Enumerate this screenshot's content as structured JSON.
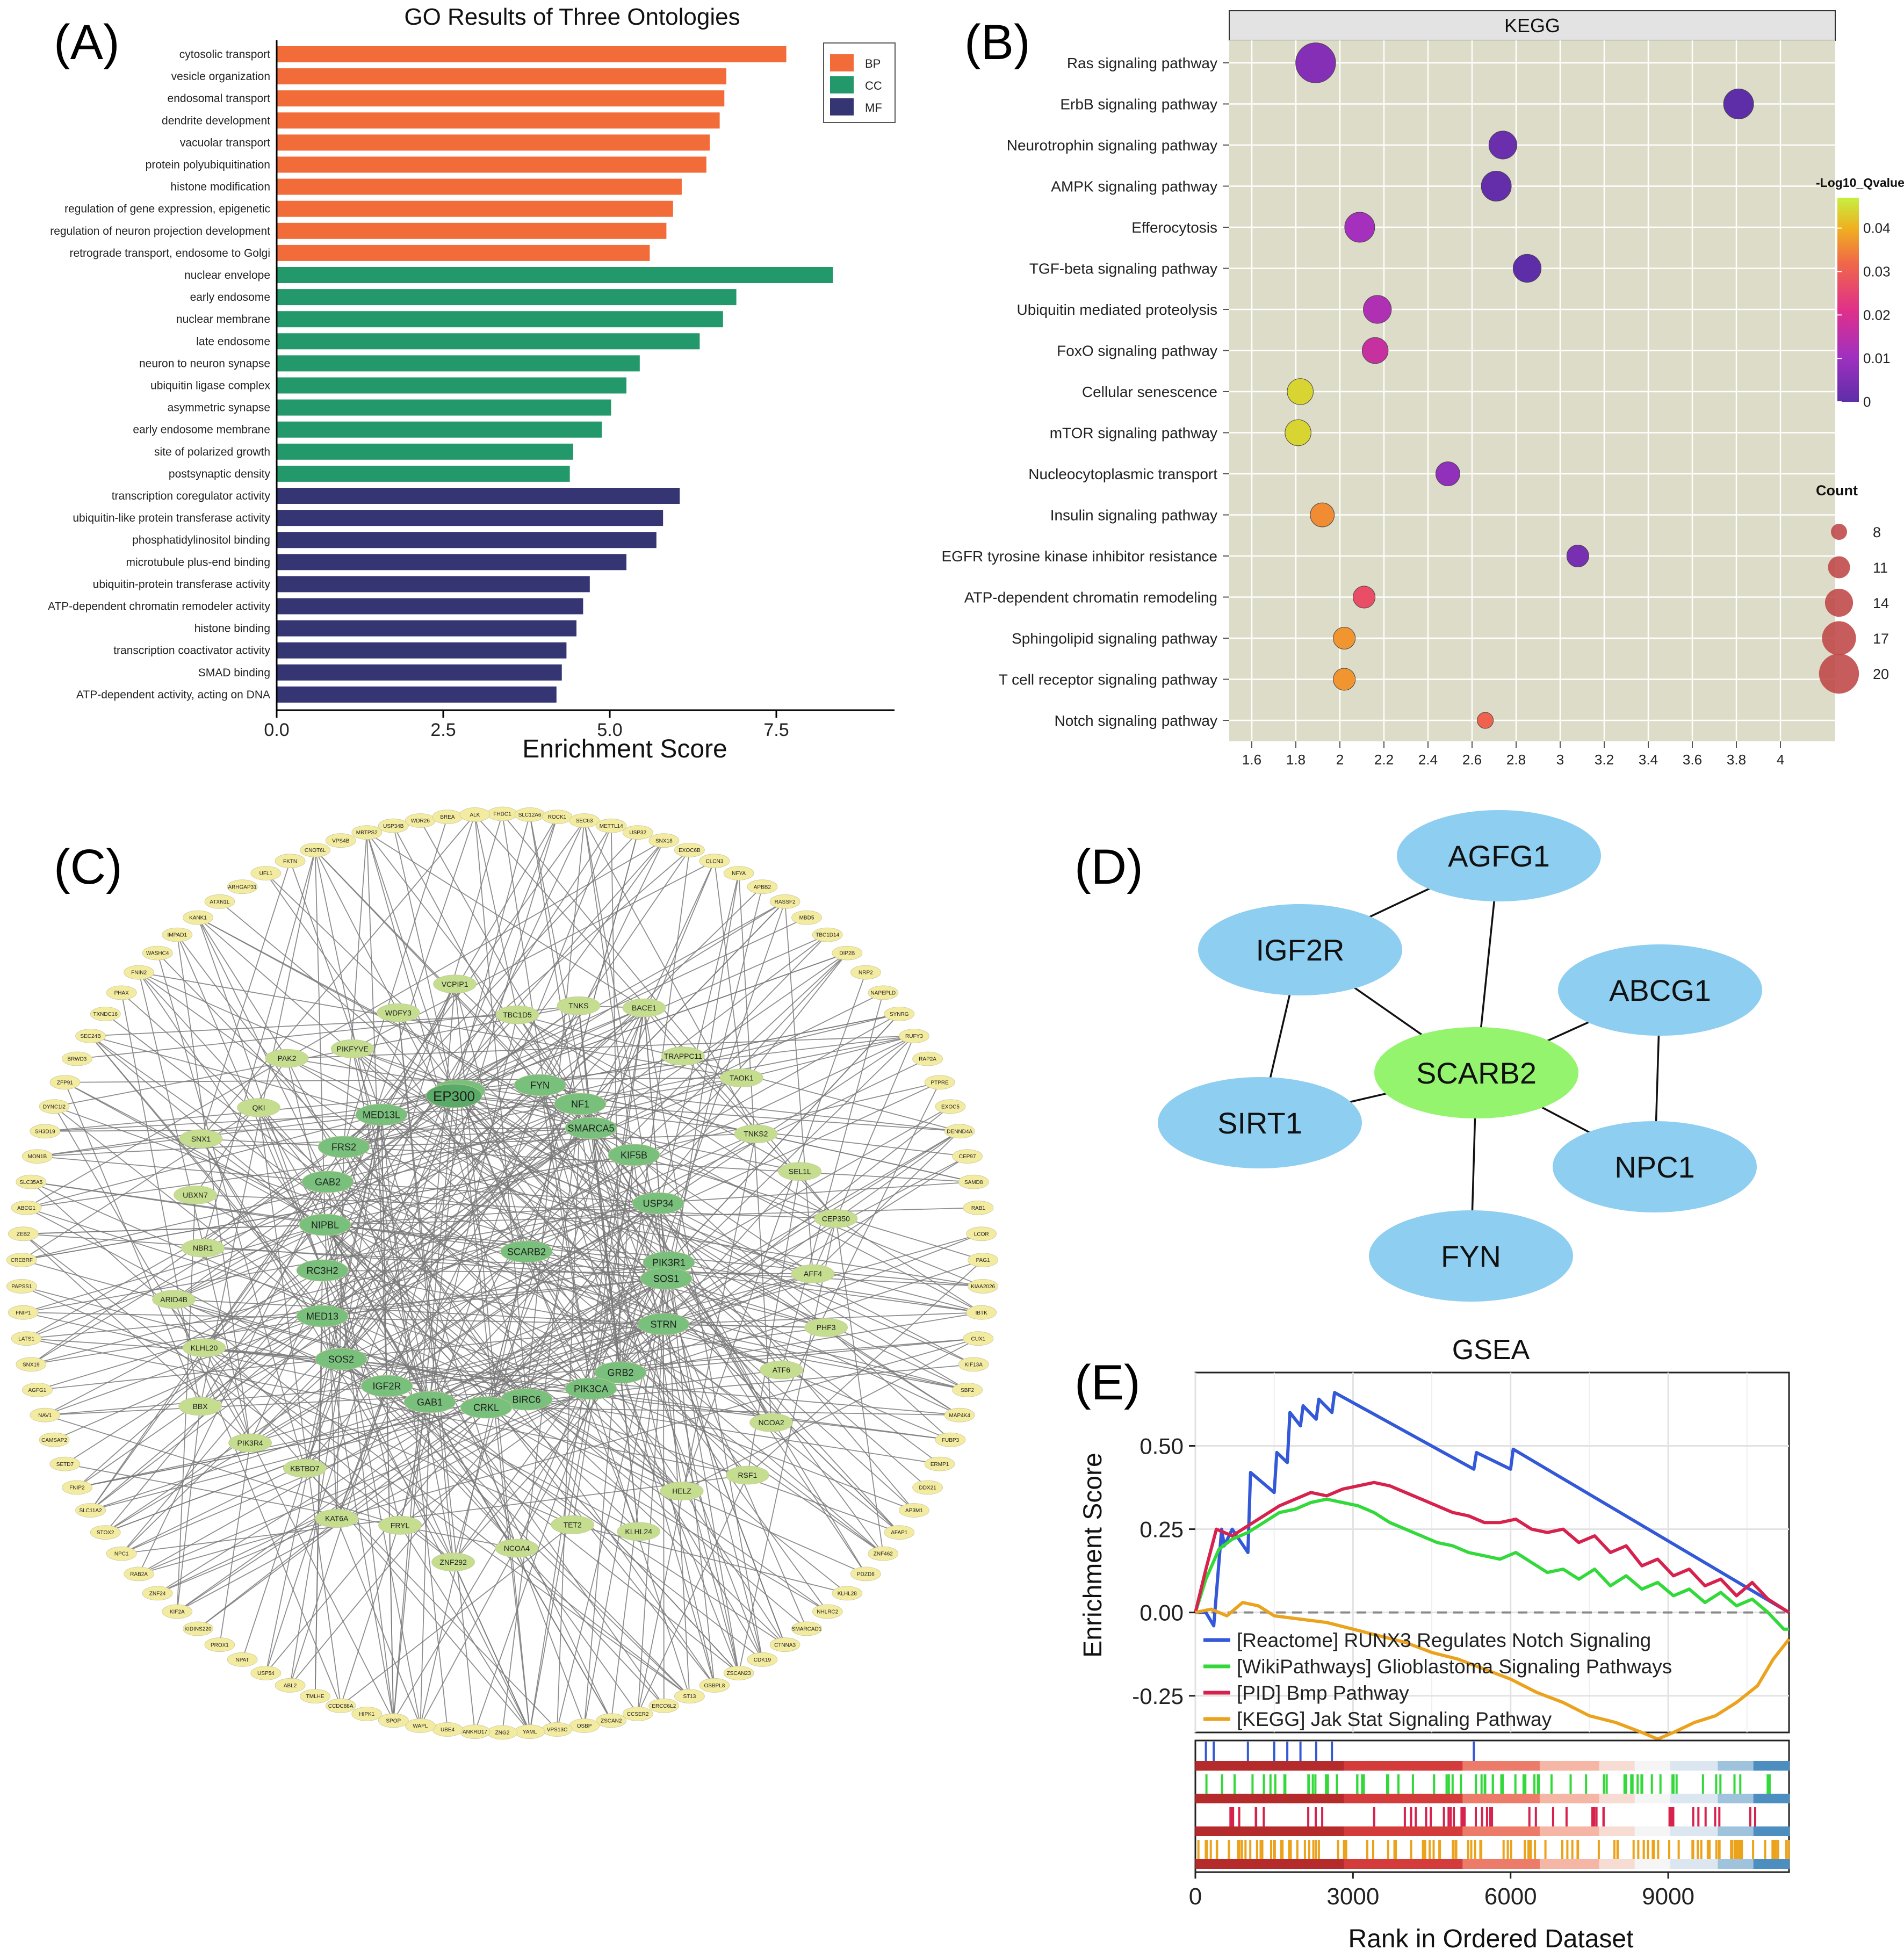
{
  "panel_labels": {
    "a": "(A)",
    "b": "(B)",
    "c": "(C)",
    "d": "(D)",
    "e": "(E)"
  },
  "colors": {
    "bp": "#f26c3a",
    "cc": "#23986b",
    "mf": "#353574",
    "kegg_bg": "#dcdcc8",
    "strip": "#e3e3e3",
    "d_outer": "#8ecef0",
    "d_center": "#95f46e",
    "net_bg": "#ffffff",
    "net_outer": "#f3eba0",
    "net_mid": "#c5dd8e",
    "net_inner": "#78c07c",
    "gsea_reactome": "#3358d8",
    "gsea_wiki": "#33d93a",
    "gsea_pid": "#d6224d",
    "gsea_kegg": "#eba21c"
  },
  "chart_data": [
    {
      "type": "bar",
      "orientation": "horizontal",
      "title": "GO Results of Three Ontologies",
      "xlabel": "Enrichment Score",
      "ylabel": "",
      "xlim": [
        0,
        9.2
      ],
      "xticks": [
        "0.0",
        "2.5",
        "5.0",
        "7.5"
      ],
      "xtick_values": [
        0,
        2.5,
        5,
        7.5
      ],
      "legend": {
        "position": "top-right",
        "entries": [
          "BP",
          "CC",
          "MF"
        ]
      },
      "categories": [
        "cytosolic transport",
        "vesicle organization",
        "endosomal transport",
        "dendrite development",
        "vacuolar transport",
        "protein polyubiquitination",
        "histone modification",
        "regulation of gene expression, epigenetic",
        "regulation of neuron projection development",
        "retrograde transport, endosome to Golgi",
        "nuclear envelope",
        "early endosome",
        "nuclear membrane",
        "late endosome",
        "neuron to neuron synapse",
        "ubiquitin ligase complex",
        "asymmetric synapse",
        "early endosome membrane",
        "site of polarized growth",
        "postsynaptic density",
        "transcription coregulator activity",
        "ubiquitin-like protein transferase activity",
        "phosphatidylinositol binding",
        "microtubule plus-end binding",
        "ubiquitin-protein transferase activity",
        "ATP-dependent chromatin remodeler activity",
        "histone binding",
        "transcription coactivator activity",
        "SMAD binding",
        "ATP-dependent activity, acting on DNA"
      ],
      "values": [
        7.65,
        6.75,
        6.72,
        6.65,
        6.5,
        6.45,
        6.08,
        5.95,
        5.85,
        5.6,
        8.35,
        6.9,
        6.7,
        6.35,
        5.45,
        5.25,
        5.02,
        4.88,
        4.45,
        4.4,
        6.05,
        5.8,
        5.7,
        5.25,
        4.7,
        4.6,
        4.5,
        4.35,
        4.28,
        4.2
      ],
      "groups": [
        "BP",
        "BP",
        "BP",
        "BP",
        "BP",
        "BP",
        "BP",
        "BP",
        "BP",
        "BP",
        "CC",
        "CC",
        "CC",
        "CC",
        "CC",
        "CC",
        "CC",
        "CC",
        "CC",
        "CC",
        "MF",
        "MF",
        "MF",
        "MF",
        "MF",
        "MF",
        "MF",
        "MF",
        "MF",
        "MF"
      ]
    },
    {
      "type": "scatter",
      "title": "KEGG",
      "xlabel": "",
      "ylabel": "",
      "xlim": [
        1.5,
        4.2
      ],
      "xticks": [
        "1.6",
        "1.8",
        "2",
        "2.2",
        "2.4",
        "2.6",
        "2.8",
        "3",
        "3.2",
        "3.4",
        "3.6",
        "3.8",
        "4"
      ],
      "xtick_values": [
        1.6,
        1.8,
        2,
        2.2,
        2.4,
        2.6,
        2.8,
        3,
        3.2,
        3.4,
        3.6,
        3.8,
        4
      ],
      "categories": [
        "Ras signaling pathway",
        "ErbB signaling pathway",
        "Neurotrophin signaling pathway",
        "AMPK signaling pathway",
        "Efferocytosis",
        "TGF-beta signaling pathway",
        "Ubiquitin mediated proteolysis",
        "FoxO signaling pathway",
        "Cellular senescence",
        "mTOR signaling pathway",
        "Nucleocytoplasmic transport",
        "Insulin signaling pathway",
        "EGFR tyrosine kinase inhibitor resistance",
        "ATP-dependent chromatin remodeling",
        "Sphingolipid signaling pathway",
        "T cell receptor signaling pathway",
        "Notch signaling pathway"
      ],
      "x": [
        1.89,
        3.81,
        2.74,
        2.71,
        2.09,
        2.85,
        2.17,
        2.16,
        1.82,
        1.81,
        2.49,
        1.92,
        3.08,
        2.11,
        2.02,
        2.02,
        2.66
      ],
      "count": [
        20,
        15,
        14,
        15,
        15,
        14,
        14,
        13,
        13,
        13,
        12,
        12,
        11,
        11,
        11,
        11,
        8
      ],
      "qvalue_color": [
        0.006,
        0.0,
        0.002,
        0.001,
        0.011,
        0.0,
        0.013,
        0.017,
        0.044,
        0.044,
        0.008,
        0.036,
        0.004,
        0.027,
        0.037,
        0.037,
        0.031
      ],
      "colorbar": {
        "title": "-Log10_Qvalue",
        "ticks": [
          "0",
          "0.01",
          "0.02",
          "0.03",
          "0.04"
        ],
        "tick_values": [
          0,
          0.01,
          0.02,
          0.03,
          0.04
        ],
        "range": [
          0,
          0.047
        ]
      },
      "size_legend": {
        "title": "Count",
        "labels": [
          "8",
          "11",
          "14",
          "17",
          "20"
        ],
        "values": [
          8,
          11,
          14,
          17,
          20
        ]
      }
    },
    {
      "type": "line",
      "title": "GSEA",
      "xlabel": "Rank in Ordered Dataset",
      "ylabel": "Enrichment Score",
      "xlim": [
        0,
        11300
      ],
      "ylim": [
        -0.36,
        0.72
      ],
      "xticks": [
        "0",
        "3000",
        "6000",
        "9000"
      ],
      "xtick_values": [
        0,
        3000,
        6000,
        9000
      ],
      "yticks": [
        "0.50",
        "0.25",
        "0.00",
        "-0.25"
      ],
      "ytick_values": [
        0.5,
        0.25,
        0,
        -0.25
      ],
      "legend": {
        "position": "bottom-left"
      },
      "series": [
        {
          "name": "[Reactome] RUNX3 Regulates Notch Signaling",
          "x": [
            0,
            200,
            350,
            500,
            550,
            700,
            1000,
            1050,
            1500,
            1550,
            1750,
            1800,
            2000,
            2050,
            2300,
            2350,
            2600,
            2650,
            5300,
            5350,
            6000,
            6050,
            11300
          ],
          "y": [
            0,
            0.0,
            -0.04,
            0.25,
            0.2,
            0.25,
            0.18,
            0.42,
            0.36,
            0.48,
            0.45,
            0.6,
            0.56,
            0.62,
            0.58,
            0.64,
            0.6,
            0.66,
            0.43,
            0.48,
            0.43,
            0.49,
            0.0
          ]
        },
        {
          "name": "[WikiPathways] Glioblastoma Signaling Pathways",
          "x": [
            0,
            200,
            450,
            700,
            1000,
            1300,
            1600,
            1900,
            2200,
            2500,
            2800,
            3100,
            3400,
            3700,
            4000,
            4300,
            4600,
            4900,
            5200,
            5500,
            5800,
            6100,
            6400,
            6700,
            7000,
            7300,
            7600,
            7900,
            8200,
            8500,
            8800,
            9100,
            9400,
            9700,
            10000,
            10300,
            10600,
            10900,
            11200,
            11300
          ],
          "y": [
            0,
            0.1,
            0.19,
            0.22,
            0.24,
            0.27,
            0.3,
            0.31,
            0.33,
            0.34,
            0.33,
            0.32,
            0.3,
            0.27,
            0.25,
            0.23,
            0.21,
            0.2,
            0.18,
            0.17,
            0.16,
            0.18,
            0.15,
            0.12,
            0.13,
            0.1,
            0.13,
            0.08,
            0.11,
            0.07,
            0.09,
            0.05,
            0.07,
            0.03,
            0.06,
            0.02,
            0.04,
            0.0,
            -0.05,
            -0.05
          ]
        },
        {
          "name": "[PID] Bmp Pathway",
          "x": [
            0,
            200,
            400,
            700,
            1000,
            1300,
            1600,
            1900,
            2200,
            2500,
            2800,
            3100,
            3400,
            3700,
            4000,
            4300,
            4600,
            4900,
            5200,
            5500,
            5800,
            6100,
            6400,
            6700,
            7000,
            7300,
            7600,
            7900,
            8200,
            8500,
            8800,
            9100,
            9400,
            9700,
            10000,
            10300,
            10600,
            10900,
            11300
          ],
          "y": [
            0,
            0.13,
            0.25,
            0.23,
            0.26,
            0.29,
            0.32,
            0.34,
            0.36,
            0.35,
            0.37,
            0.38,
            0.39,
            0.38,
            0.36,
            0.34,
            0.32,
            0.3,
            0.29,
            0.27,
            0.27,
            0.28,
            0.25,
            0.24,
            0.25,
            0.21,
            0.23,
            0.18,
            0.2,
            0.14,
            0.16,
            0.11,
            0.13,
            0.08,
            0.1,
            0.05,
            0.09,
            0.04,
            0.0
          ]
        },
        {
          "name": "[KEGG] Jak Stat Signaling Pathway",
          "x": [
            0,
            300,
            600,
            900,
            1200,
            1500,
            2000,
            2500,
            3000,
            3500,
            4000,
            4500,
            5000,
            5500,
            6000,
            6500,
            7000,
            7500,
            8000,
            8500,
            8800,
            9100,
            9500,
            9900,
            10300,
            10700,
            11000,
            11300
          ],
          "y": [
            0.0,
            0.01,
            -0.01,
            0.03,
            0.02,
            -0.01,
            -0.02,
            -0.03,
            -0.05,
            -0.07,
            -0.09,
            -0.12,
            -0.14,
            -0.17,
            -0.2,
            -0.24,
            -0.27,
            -0.31,
            -0.33,
            -0.36,
            -0.38,
            -0.36,
            -0.33,
            -0.31,
            -0.27,
            -0.22,
            -0.14,
            -0.08
          ]
        }
      ]
    }
  ],
  "network": {
    "hub": "EP300",
    "inner": [
      "PIK3R1",
      "GRB2",
      "PIK3CA",
      "SIRT1",
      "FYN",
      "NF1",
      "SMARCA5",
      "KIF5B",
      "USP34",
      "SOS1",
      "STRN",
      "BIRC6",
      "CRKL",
      "GAB1",
      "IGF2R",
      "SOS2",
      "MED13",
      "RC3H2",
      "NIPBL",
      "GAB2",
      "FRS2",
      "MED13L",
      "SCARB2"
    ],
    "middle": [
      "TBC1D5",
      "TNKS",
      "BACE1",
      "TRAPPC11",
      "TAOK1",
      "TNKS2",
      "SEL1L",
      "CEP350",
      "AFF4",
      "PHF3",
      "ATF6",
      "NCOA2",
      "RSF1",
      "HELZ",
      "KLHL24",
      "TET2",
      "NCOA4",
      "ZNF292",
      "FRYL",
      "KAT6A",
      "KBTBD7",
      "PIK3R4",
      "BBX",
      "KLHL20",
      "ARID4B",
      "NBR1",
      "UBXN7",
      "SNX1",
      "QKI",
      "PAK2",
      "PIKFYVE",
      "WDFY3",
      "VCPIP1"
    ],
    "outer": [
      "FHDC1",
      "SLC12A6",
      "ROCK1",
      "SEC63",
      "METTL14",
      "USP32",
      "SNX18",
      "EXOC6B",
      "CLCN3",
      "NFYA",
      "APBB2",
      "RASSF2",
      "MBD5",
      "TBC1D14",
      "DIP2B",
      "NRP2",
      "NAPEPLD",
      "SYNRG",
      "RUFY3",
      "RAP2A",
      "PTPRE",
      "EXOC5",
      "DENND4A",
      "CEP97",
      "SAMD8",
      "RAB1",
      "LCOR",
      "PAG1",
      "KIAA2026",
      "IBTK",
      "CUX1",
      "KIF13A",
      "SBF2",
      "MAP4K4",
      "FUBP3",
      "ERMP1",
      "DDX21",
      "AP3M1",
      "AFAP1",
      "ZNF462",
      "PDZD8",
      "KLHL28",
      "NHLRC2",
      "SMARCAD1",
      "CTNNA3",
      "CDK19",
      "ZSCAN23",
      "OSBPL8",
      "ST13",
      "ERCC6L2",
      "CCSER2",
      "ZSCAN2",
      "OSBP",
      "VPS13C",
      "YAML",
      "ZNG2",
      "ANKRD17",
      "UBE4",
      "WAPL",
      "SPOP",
      "HIPK1",
      "CCDC88A",
      "TMLHE",
      "ABL2",
      "USP54",
      "NPAT",
      "PROX1",
      "KIDINS220",
      "KIF2A",
      "ZNF24",
      "RAB2A",
      "NPC1",
      "STOX2",
      "SLC11A2",
      "FNIP2",
      "SETD7",
      "CAMSAP2",
      "NAV1",
      "AGFG1",
      "SNX19",
      "LATS1",
      "FNIP1",
      "PAPSS1",
      "CREBRF",
      "ZEB2",
      "ABCG1",
      "SLC35A5",
      "MON1B",
      "SH3D19",
      "DYNC1I2",
      "ZFP91",
      "BRWD3",
      "SEC24B",
      "TXNDC16",
      "PHAX",
      "FNIN2",
      "WASHC4",
      "IMPAD1",
      "KANK1",
      "ATXN1L",
      "ARHGAP31",
      "UFL1",
      "FKTN",
      "CNOT6L",
      "VPS4B",
      "MBTPS2",
      "USP34B",
      "WDR26",
      "BREA",
      "ALK"
    ]
  },
  "ppi": {
    "center": "SCARB2",
    "nodes": [
      "AGFG1",
      "IGF2R",
      "ABCG1",
      "SIRT1",
      "NPC1",
      "FYN"
    ]
  }
}
